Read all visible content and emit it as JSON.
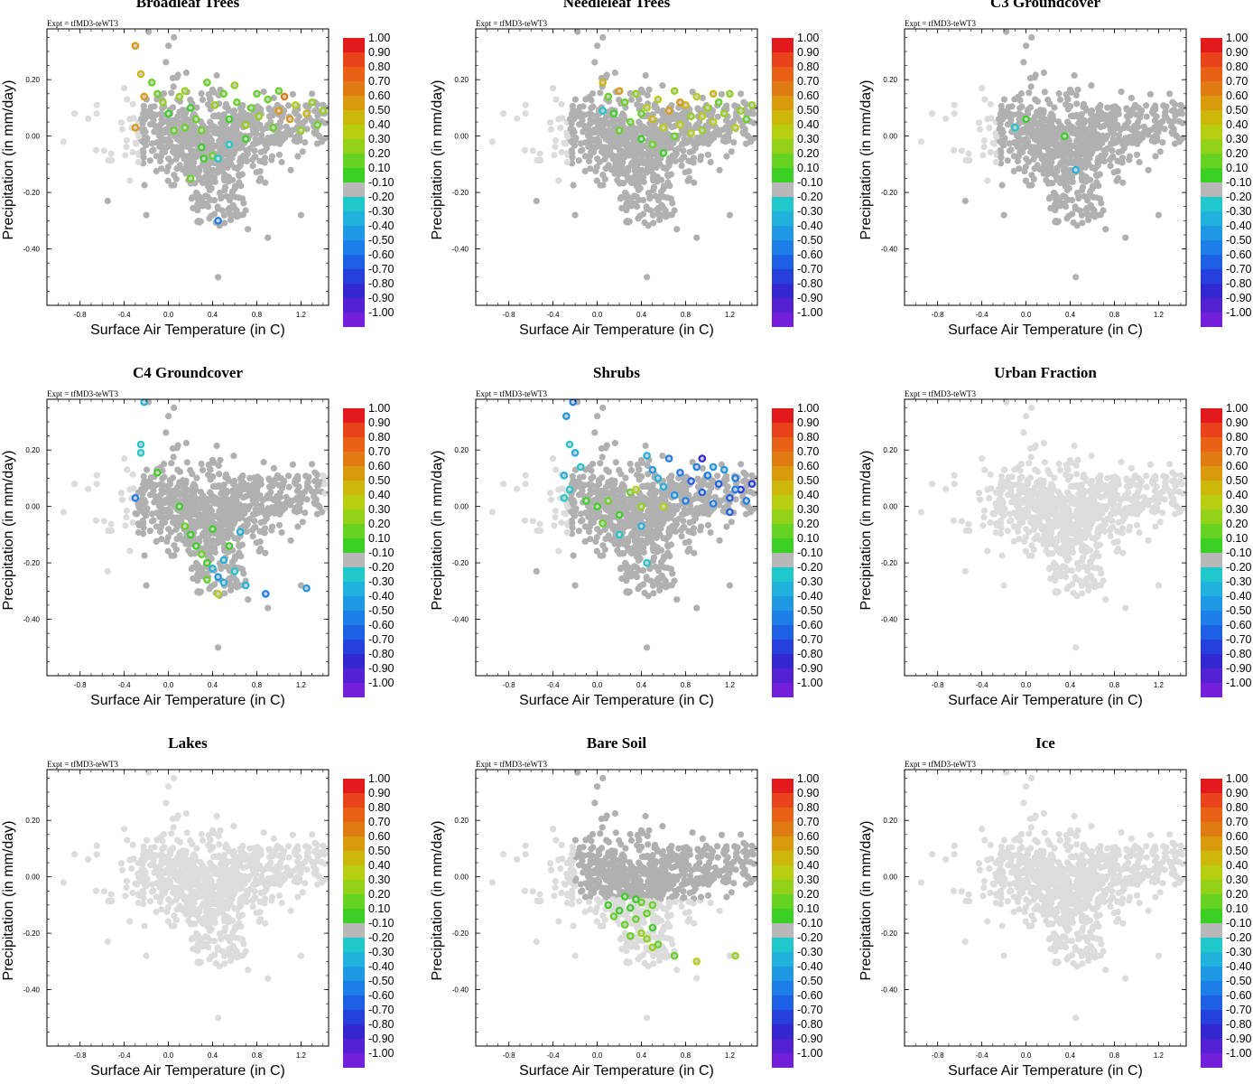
{
  "chart_data": {
    "type": "scatter",
    "experiment_label": "Expt = tfMD3-teWT3",
    "xlabel": "Surface Air Temperature (in C)",
    "ylabel": "Precipitation (in mm/day)",
    "xlim": [
      -1.1,
      1.45
    ],
    "ylim": [
      -0.6,
      0.38
    ],
    "x_ticks": [
      -0.8,
      -0.4,
      0.0,
      0.4,
      0.8,
      1.2
    ],
    "x_tick_labels": [
      "-0.8",
      "-0.4",
      "0.0",
      "0.4",
      "0.8",
      "1.2"
    ],
    "y_ticks": [
      0.2,
      0.0,
      -0.2,
      -0.4
    ],
    "y_tick_labels": [
      "0.20",
      "0.00",
      "-0.20",
      "-0.40"
    ],
    "colorbar": {
      "labels": [
        "1.00",
        "0.90",
        "0.80",
        "0.70",
        "0.60",
        "0.50",
        "0.40",
        "0.30",
        "0.20",
        "0.10",
        "-0.10",
        "-0.20",
        "-0.30",
        "-0.40",
        "-0.50",
        "-0.60",
        "-0.70",
        "-0.80",
        "-0.90",
        "-1.00"
      ],
      "colors": [
        "#e31a1c",
        "#e8431a",
        "#e96117",
        "#e07a12",
        "#d99a0e",
        "#cdb70a",
        "#b7cf10",
        "#94d21a",
        "#66d323",
        "#3ccf25",
        "#b8b8b8",
        "#20c8cc",
        "#20b2dc",
        "#1e98e2",
        "#1c7ee6",
        "#1e60e4",
        "#2540dc",
        "#3328d0",
        "#5320d2",
        "#7420da"
      ]
    },
    "background_point_color": "#dcdcdc",
    "gray_point_color": "#b0b0b0",
    "panels": [
      {
        "title": "Broadleaf Trees",
        "grey_coverage": "wide",
        "colored_points": [
          {
            "x": -0.3,
            "y": 0.32,
            "v": 0.55
          },
          {
            "x": -0.3,
            "y": 0.03,
            "v": 0.55
          },
          {
            "x": -0.25,
            "y": 0.22,
            "v": 0.5
          },
          {
            "x": -0.22,
            "y": 0.14,
            "v": 0.6
          },
          {
            "x": -0.15,
            "y": 0.19,
            "v": 0.2
          },
          {
            "x": -0.1,
            "y": 0.15,
            "v": 0.25
          },
          {
            "x": -0.05,
            "y": 0.12,
            "v": 0.3
          },
          {
            "x": 0.0,
            "y": 0.08,
            "v": 0.15
          },
          {
            "x": 0.05,
            "y": 0.02,
            "v": 0.2
          },
          {
            "x": 0.1,
            "y": 0.14,
            "v": 0.3
          },
          {
            "x": 0.15,
            "y": 0.03,
            "v": 0.2
          },
          {
            "x": 0.2,
            "y": 0.1,
            "v": 0.15
          },
          {
            "x": 0.25,
            "y": 0.06,
            "v": 0.25
          },
          {
            "x": 0.3,
            "y": 0.02,
            "v": 0.2
          },
          {
            "x": 0.32,
            "y": -0.08,
            "v": 0.15
          },
          {
            "x": 0.4,
            "y": -0.07,
            "v": 0.2
          },
          {
            "x": 0.42,
            "y": 0.11,
            "v": 0.3
          },
          {
            "x": 0.5,
            "y": 0.15,
            "v": 0.2
          },
          {
            "x": 0.55,
            "y": 0.06,
            "v": 0.15
          },
          {
            "x": 0.62,
            "y": 0.12,
            "v": 0.25
          },
          {
            "x": 0.7,
            "y": 0.04,
            "v": 0.3
          },
          {
            "x": 0.75,
            "y": 0.1,
            "v": 0.2
          },
          {
            "x": 0.82,
            "y": 0.07,
            "v": 0.35
          },
          {
            "x": 0.9,
            "y": 0.13,
            "v": 0.25
          },
          {
            "x": 0.95,
            "y": 0.03,
            "v": 0.2
          },
          {
            "x": 1.0,
            "y": 0.09,
            "v": 0.6
          },
          {
            "x": 1.05,
            "y": 0.14,
            "v": 0.65
          },
          {
            "x": 1.1,
            "y": 0.06,
            "v": 0.55
          },
          {
            "x": 1.15,
            "y": 0.11,
            "v": 0.4
          },
          {
            "x": 1.2,
            "y": 0.02,
            "v": 0.3
          },
          {
            "x": 1.25,
            "y": 0.08,
            "v": 0.5
          },
          {
            "x": 1.3,
            "y": 0.12,
            "v": 0.35
          },
          {
            "x": 1.35,
            "y": 0.04,
            "v": 0.25
          },
          {
            "x": 1.4,
            "y": 0.09,
            "v": 0.3
          },
          {
            "x": 0.3,
            "y": -0.04,
            "v": 0.15
          },
          {
            "x": 0.2,
            "y": -0.15,
            "v": 0.2
          },
          {
            "x": 0.45,
            "y": -0.08,
            "v": -0.25
          },
          {
            "x": 0.55,
            "y": -0.03,
            "v": -0.2
          },
          {
            "x": 0.45,
            "y": -0.3,
            "v": -0.5
          },
          {
            "x": 0.15,
            "y": 0.16,
            "v": 0.35
          },
          {
            "x": 0.6,
            "y": 0.18,
            "v": 0.3
          },
          {
            "x": 0.35,
            "y": 0.19,
            "v": 0.25
          },
          {
            "x": 0.8,
            "y": 0.15,
            "v": 0.2
          },
          {
            "x": 1.0,
            "y": 0.16,
            "v": 0.25
          },
          {
            "x": 0.7,
            "y": -0.01,
            "v": 0.1
          }
        ]
      },
      {
        "title": "Needleleaf Trees",
        "grey_coverage": "wide",
        "colored_points": [
          {
            "x": 0.05,
            "y": 0.19,
            "v": 0.5
          },
          {
            "x": 0.1,
            "y": 0.14,
            "v": 0.2
          },
          {
            "x": 0.15,
            "y": 0.08,
            "v": 0.15
          },
          {
            "x": 0.2,
            "y": 0.02,
            "v": 0.2
          },
          {
            "x": 0.25,
            "y": 0.12,
            "v": 0.25
          },
          {
            "x": 0.3,
            "y": 0.05,
            "v": 0.2
          },
          {
            "x": 0.35,
            "y": 0.15,
            "v": 0.3
          },
          {
            "x": 0.4,
            "y": -0.01,
            "v": 0.15
          },
          {
            "x": 0.45,
            "y": 0.1,
            "v": 0.4
          },
          {
            "x": 0.5,
            "y": 0.06,
            "v": 0.5
          },
          {
            "x": 0.55,
            "y": 0.13,
            "v": 0.45
          },
          {
            "x": 0.6,
            "y": 0.03,
            "v": 0.4
          },
          {
            "x": 0.65,
            "y": 0.09,
            "v": 0.55
          },
          {
            "x": 0.7,
            "y": 0.16,
            "v": 0.35
          },
          {
            "x": 0.75,
            "y": 0.04,
            "v": 0.45
          },
          {
            "x": 0.8,
            "y": 0.11,
            "v": 0.5
          },
          {
            "x": 0.85,
            "y": 0.07,
            "v": 0.3
          },
          {
            "x": 0.9,
            "y": 0.14,
            "v": 0.4
          },
          {
            "x": 0.95,
            "y": 0.02,
            "v": 0.35
          },
          {
            "x": 1.0,
            "y": 0.1,
            "v": 0.3
          },
          {
            "x": 1.05,
            "y": 0.05,
            "v": 0.4
          },
          {
            "x": 1.1,
            "y": 0.12,
            "v": 0.25
          },
          {
            "x": 1.15,
            "y": 0.08,
            "v": 0.3
          },
          {
            "x": 1.2,
            "y": 0.15,
            "v": 0.35
          },
          {
            "x": 1.25,
            "y": 0.03,
            "v": 0.4
          },
          {
            "x": 1.3,
            "y": 0.09,
            "v": 0.3
          },
          {
            "x": 1.35,
            "y": 0.06,
            "v": 0.25
          },
          {
            "x": 1.4,
            "y": 0.11,
            "v": 0.3
          },
          {
            "x": 0.6,
            "y": -0.06,
            "v": 0.15
          },
          {
            "x": 0.7,
            "y": 0.0,
            "v": 0.2
          },
          {
            "x": 0.05,
            "y": 0.09,
            "v": -0.25
          },
          {
            "x": 0.2,
            "y": 0.16,
            "v": 0.6
          },
          {
            "x": 0.5,
            "y": -0.03,
            "v": 0.2
          },
          {
            "x": 0.85,
            "y": 0.01,
            "v": 0.45
          },
          {
            "x": 1.05,
            "y": 0.15,
            "v": 0.5
          },
          {
            "x": 0.4,
            "y": 0.08,
            "v": 0.25
          },
          {
            "x": 0.75,
            "y": 0.12,
            "v": 0.6
          },
          {
            "x": 0.95,
            "y": 0.07,
            "v": 0.45
          }
        ]
      },
      {
        "title": "C3 Groundcover",
        "grey_coverage": "wide",
        "colored_points": [
          {
            "x": 0.0,
            "y": 0.06,
            "v": 0.15
          },
          {
            "x": -0.1,
            "y": 0.03,
            "v": -0.25
          },
          {
            "x": 0.45,
            "y": -0.12,
            "v": -0.3
          },
          {
            "x": 0.35,
            "y": 0.0,
            "v": 0.12
          }
        ]
      },
      {
        "title": "C4 Groundcover",
        "grey_coverage": "medium",
        "colored_points": [
          {
            "x": -0.22,
            "y": 0.37,
            "v": -0.3
          },
          {
            "x": -0.25,
            "y": 0.22,
            "v": -0.25
          },
          {
            "x": -0.25,
            "y": 0.19,
            "v": -0.2
          },
          {
            "x": -0.3,
            "y": 0.03,
            "v": -0.5
          },
          {
            "x": -0.1,
            "y": 0.12,
            "v": 0.15
          },
          {
            "x": 0.1,
            "y": 0.0,
            "v": 0.15
          },
          {
            "x": 0.15,
            "y": -0.07,
            "v": 0.2
          },
          {
            "x": 0.2,
            "y": -0.1,
            "v": 0.15
          },
          {
            "x": 0.25,
            "y": -0.14,
            "v": 0.15
          },
          {
            "x": 0.3,
            "y": -0.17,
            "v": 0.2
          },
          {
            "x": 0.35,
            "y": -0.2,
            "v": 0.15
          },
          {
            "x": 0.4,
            "y": -0.22,
            "v": -0.3
          },
          {
            "x": 0.45,
            "y": -0.25,
            "v": -0.4
          },
          {
            "x": 0.5,
            "y": -0.19,
            "v": -0.3
          },
          {
            "x": 0.6,
            "y": -0.23,
            "v": -0.25
          },
          {
            "x": 0.65,
            "y": -0.09,
            "v": -0.3
          },
          {
            "x": 0.55,
            "y": -0.14,
            "v": 0.15
          },
          {
            "x": 0.4,
            "y": -0.08,
            "v": 0.15
          },
          {
            "x": 0.7,
            "y": -0.28,
            "v": -0.3
          },
          {
            "x": 0.88,
            "y": -0.31,
            "v": -0.5
          },
          {
            "x": 1.25,
            "y": -0.29,
            "v": -0.4
          },
          {
            "x": 0.45,
            "y": -0.31,
            "v": 0.4
          },
          {
            "x": 0.5,
            "y": -0.27,
            "v": -0.3
          },
          {
            "x": 0.35,
            "y": -0.26,
            "v": 0.2
          }
        ]
      },
      {
        "title": "Shrubs",
        "grey_coverage": "wide",
        "colored_points": [
          {
            "x": -0.22,
            "y": 0.37,
            "v": -0.5
          },
          {
            "x": -0.28,
            "y": 0.32,
            "v": -0.4
          },
          {
            "x": -0.25,
            "y": 0.22,
            "v": -0.25
          },
          {
            "x": -0.2,
            "y": 0.19,
            "v": -0.3
          },
          {
            "x": -0.15,
            "y": 0.14,
            "v": -0.25
          },
          {
            "x": -0.3,
            "y": 0.11,
            "v": -0.3
          },
          {
            "x": -0.25,
            "y": 0.06,
            "v": -0.25
          },
          {
            "x": -0.3,
            "y": 0.03,
            "v": -0.2
          },
          {
            "x": -0.1,
            "y": 0.02,
            "v": 0.15
          },
          {
            "x": 0.0,
            "y": 0.0,
            "v": 0.15
          },
          {
            "x": 0.1,
            "y": 0.02,
            "v": 0.2
          },
          {
            "x": 0.2,
            "y": -0.03,
            "v": 0.15
          },
          {
            "x": 0.3,
            "y": 0.05,
            "v": 0.2
          },
          {
            "x": 0.4,
            "y": 0.0,
            "v": 0.3
          },
          {
            "x": 0.45,
            "y": 0.18,
            "v": -0.3
          },
          {
            "x": 0.5,
            "y": 0.13,
            "v": -0.4
          },
          {
            "x": 0.55,
            "y": 0.1,
            "v": -0.35
          },
          {
            "x": 0.6,
            "y": 0.07,
            "v": -0.3
          },
          {
            "x": 0.65,
            "y": 0.17,
            "v": -0.5
          },
          {
            "x": 0.7,
            "y": 0.04,
            "v": -0.4
          },
          {
            "x": 0.75,
            "y": 0.12,
            "v": -0.45
          },
          {
            "x": 0.8,
            "y": 0.02,
            "v": -0.5
          },
          {
            "x": 0.85,
            "y": 0.09,
            "v": -0.55
          },
          {
            "x": 0.9,
            "y": 0.14,
            "v": -0.5
          },
          {
            "x": 0.95,
            "y": 0.05,
            "v": -0.6
          },
          {
            "x": 1.0,
            "y": 0.11,
            "v": -0.45
          },
          {
            "x": 1.05,
            "y": 0.01,
            "v": -0.5
          },
          {
            "x": 1.1,
            "y": 0.08,
            "v": -0.55
          },
          {
            "x": 1.15,
            "y": 0.13,
            "v": -0.4
          },
          {
            "x": 1.2,
            "y": 0.03,
            "v": -0.6
          },
          {
            "x": 1.25,
            "y": 0.1,
            "v": -0.5
          },
          {
            "x": 1.3,
            "y": 0.06,
            "v": -0.65
          },
          {
            "x": 1.35,
            "y": 0.02,
            "v": -0.5
          },
          {
            "x": 1.4,
            "y": 0.08,
            "v": -0.7
          },
          {
            "x": 1.2,
            "y": -0.02,
            "v": -0.6
          },
          {
            "x": 0.95,
            "y": 0.17,
            "v": -0.75
          },
          {
            "x": 1.05,
            "y": 0.14,
            "v": -0.4
          },
          {
            "x": 0.4,
            "y": -0.07,
            "v": -0.3
          },
          {
            "x": 0.45,
            "y": -0.2,
            "v": -0.25
          },
          {
            "x": 0.2,
            "y": -0.1,
            "v": -0.2
          },
          {
            "x": 0.05,
            "y": -0.06,
            "v": 0.2
          },
          {
            "x": 0.6,
            "y": 0.0,
            "v": 0.4
          },
          {
            "x": 0.35,
            "y": 0.06,
            "v": 0.45
          },
          {
            "x": 1.25,
            "y": 0.06,
            "v": -0.5
          }
        ]
      },
      {
        "title": "Urban Fraction",
        "grey_coverage": "none",
        "colored_points": []
      },
      {
        "title": "Lakes",
        "grey_coverage": "none",
        "colored_points": []
      },
      {
        "title": "Bare Soil",
        "grey_coverage": "upper",
        "colored_points": [
          {
            "x": 0.1,
            "y": -0.1,
            "v": 0.15
          },
          {
            "x": 0.15,
            "y": -0.14,
            "v": 0.2
          },
          {
            "x": 0.2,
            "y": -0.12,
            "v": 0.15
          },
          {
            "x": 0.25,
            "y": -0.17,
            "v": 0.2
          },
          {
            "x": 0.3,
            "y": -0.11,
            "v": 0.15
          },
          {
            "x": 0.35,
            "y": -0.15,
            "v": 0.25
          },
          {
            "x": 0.4,
            "y": -0.2,
            "v": 0.3
          },
          {
            "x": 0.45,
            "y": -0.13,
            "v": 0.2
          },
          {
            "x": 0.5,
            "y": -0.18,
            "v": 0.15
          },
          {
            "x": 0.4,
            "y": -0.09,
            "v": 0.2
          },
          {
            "x": 0.45,
            "y": -0.22,
            "v": 0.35
          },
          {
            "x": 0.5,
            "y": -0.25,
            "v": 0.3
          },
          {
            "x": 0.55,
            "y": -0.24,
            "v": 0.2
          },
          {
            "x": 0.7,
            "y": -0.28,
            "v": 0.25
          },
          {
            "x": 0.9,
            "y": -0.3,
            "v": 0.4
          },
          {
            "x": 1.25,
            "y": -0.28,
            "v": 0.3
          },
          {
            "x": 0.3,
            "y": -0.21,
            "v": 0.2
          },
          {
            "x": 0.35,
            "y": -0.08,
            "v": 0.15
          },
          {
            "x": 0.25,
            "y": -0.07,
            "v": 0.15
          },
          {
            "x": 0.5,
            "y": -0.1,
            "v": 0.2
          }
        ]
      },
      {
        "title": "Ice",
        "grey_coverage": "none",
        "colored_points": []
      }
    ]
  }
}
